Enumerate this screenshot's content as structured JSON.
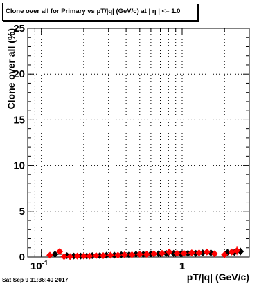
{
  "chart_data": {
    "type": "scatter",
    "title": "Clone  over all for Primary vs pT/|q| (GeV/c) at |  η | <= 1.0",
    "xlabel": "pT/|q| (GeV/c)",
    "ylabel": "Clone  over all (%)",
    "xscale": "log",
    "xlim": [
      0.08,
      3.0
    ],
    "ylim": [
      0,
      25
    ],
    "grid": true,
    "x_tick_labels": [
      {
        "value": 0.1,
        "label": "10",
        "exponent": "-1"
      },
      {
        "value": 1,
        "label": "1",
        "exponent": ""
      }
    ],
    "y_ticks": [
      0,
      5,
      10,
      15,
      20,
      25
    ],
    "series": [
      {
        "color": "#000000",
        "marker": "diamond",
        "points": [
          {
            "x": 0.125,
            "y": 0.3,
            "xerr": 0.015
          },
          {
            "x": 0.152,
            "y": 0.15
          },
          {
            "x": 0.17,
            "y": 0.1
          },
          {
            "x": 0.19,
            "y": 0.1
          },
          {
            "x": 0.21,
            "y": 0.1
          },
          {
            "x": 0.23,
            "y": 0.15
          },
          {
            "x": 0.26,
            "y": 0.15
          },
          {
            "x": 0.29,
            "y": 0.2
          },
          {
            "x": 0.33,
            "y": 0.2
          },
          {
            "x": 0.37,
            "y": 0.25
          },
          {
            "x": 0.42,
            "y": 0.25
          },
          {
            "x": 0.47,
            "y": 0.3
          },
          {
            "x": 0.53,
            "y": 0.3
          },
          {
            "x": 0.6,
            "y": 0.35
          },
          {
            "x": 0.68,
            "y": 0.35
          },
          {
            "x": 0.77,
            "y": 0.4
          },
          {
            "x": 0.87,
            "y": 0.4
          },
          {
            "x": 0.98,
            "y": 0.35
          },
          {
            "x": 1.1,
            "y": 0.4
          },
          {
            "x": 1.25,
            "y": 0.4
          },
          {
            "x": 1.4,
            "y": 0.45
          },
          {
            "x": 1.6,
            "y": 0.45
          },
          {
            "x": 2.1,
            "y": 0.5
          },
          {
            "x": 2.35,
            "y": 0.5,
            "yerr": 0.3
          },
          {
            "x": 2.6,
            "y": 0.6,
            "yerr": 0.4
          }
        ]
      },
      {
        "color": "#ff0000",
        "marker": "diamond",
        "points": [
          {
            "x": 0.115,
            "y": 0.2
          },
          {
            "x": 0.135,
            "y": 0.6
          },
          {
            "x": 0.145,
            "y": 0.05
          },
          {
            "x": 0.16,
            "y": 0.05
          },
          {
            "x": 0.18,
            "y": 0.1
          },
          {
            "x": 0.2,
            "y": 0.1
          },
          {
            "x": 0.22,
            "y": 0.1
          },
          {
            "x": 0.245,
            "y": 0.15
          },
          {
            "x": 0.275,
            "y": 0.15
          },
          {
            "x": 0.31,
            "y": 0.2
          },
          {
            "x": 0.35,
            "y": 0.2
          },
          {
            "x": 0.39,
            "y": 0.25
          },
          {
            "x": 0.44,
            "y": 0.25
          },
          {
            "x": 0.5,
            "y": 0.3
          },
          {
            "x": 0.56,
            "y": 0.3
          },
          {
            "x": 0.63,
            "y": 0.35
          },
          {
            "x": 0.72,
            "y": 0.4
          },
          {
            "x": 0.81,
            "y": 0.55
          },
          {
            "x": 0.92,
            "y": 0.4
          },
          {
            "x": 1.03,
            "y": 0.4
          },
          {
            "x": 1.17,
            "y": 0.45
          },
          {
            "x": 1.32,
            "y": 0.45
          },
          {
            "x": 1.5,
            "y": 0.55
          },
          {
            "x": 1.7,
            "y": 0.35
          },
          {
            "x": 2.0,
            "y": 0.25
          },
          {
            "x": 2.25,
            "y": 0.55
          },
          {
            "x": 2.45,
            "y": 0.7,
            "yerr": 0.5
          }
        ]
      }
    ]
  },
  "timestamp": "Sat Sep  9 11:36:40 2017"
}
